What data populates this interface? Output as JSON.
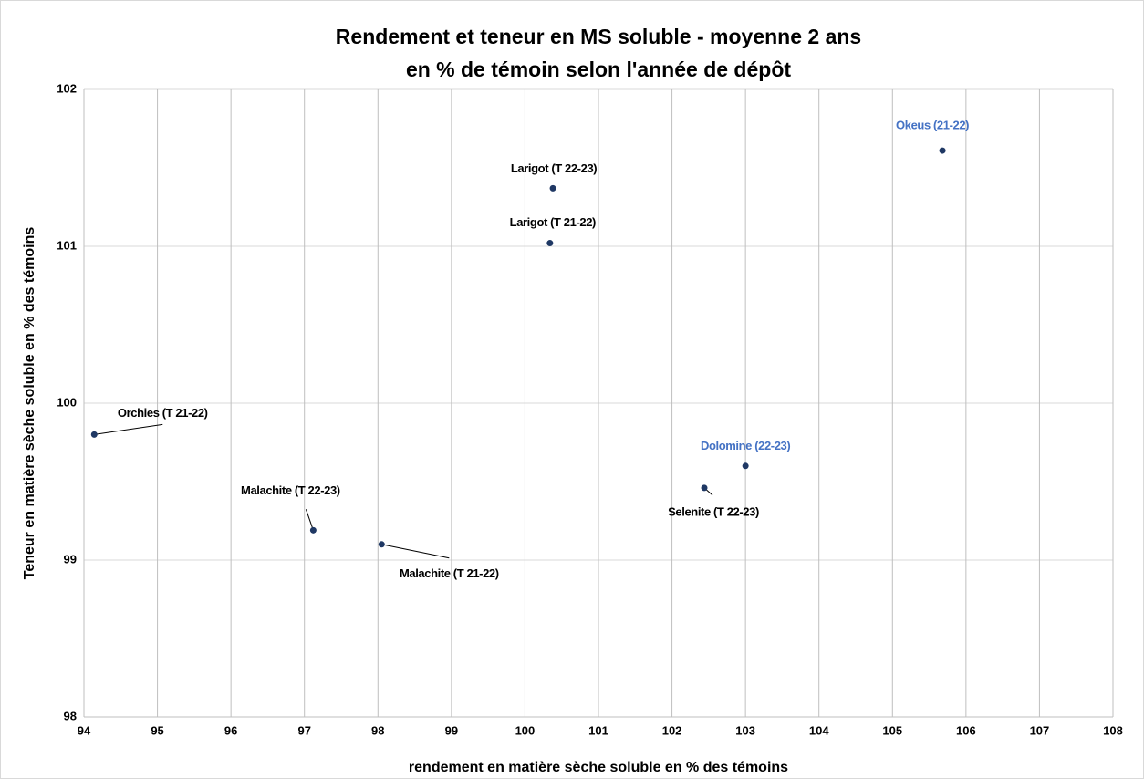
{
  "chart_data": {
    "type": "scatter",
    "title": "Rendement et teneur en MS soluble - moyenne 2 ans",
    "subtitle": "en % de témoin selon l'année de dépôt",
    "x_label": "rendement en matière sèche soluble en % des témoins",
    "y_label": "Teneur en matière sèche soluble en % des témoins",
    "labels": [
      "Orchies (T 21-22)",
      "Malachite (T 22-23)",
      "Malachite (T 21-22)",
      "Larigot (T 21-22)",
      "Larigot (T 22-23)",
      "Selenite (T 22-23)",
      "Dolomine (22-23)",
      "Okeus (21-22)"
    ],
    "x": [
      94.14,
      97.12,
      98.05,
      100.34,
      100.38,
      102.44,
      103.0,
      105.68
    ],
    "values": [
      99.8,
      99.19,
      99.1,
      101.02,
      101.37,
      99.46,
      99.6,
      101.61
    ],
    "color": "#1f3864",
    "label_colors": [
      "#000000",
      "#000000",
      "#000000",
      "#000000",
      "#000000",
      "#000000",
      "#4472c4",
      "#4472c4"
    ],
    "xlim": [
      94,
      108
    ],
    "xticks": [
      94,
      95,
      96,
      97,
      98,
      99,
      100,
      101,
      102,
      103,
      104,
      105,
      106,
      107,
      108
    ],
    "ylim": [
      98,
      102
    ],
    "yticks": [
      98,
      99,
      100,
      101,
      102
    ],
    "grid": true
  }
}
